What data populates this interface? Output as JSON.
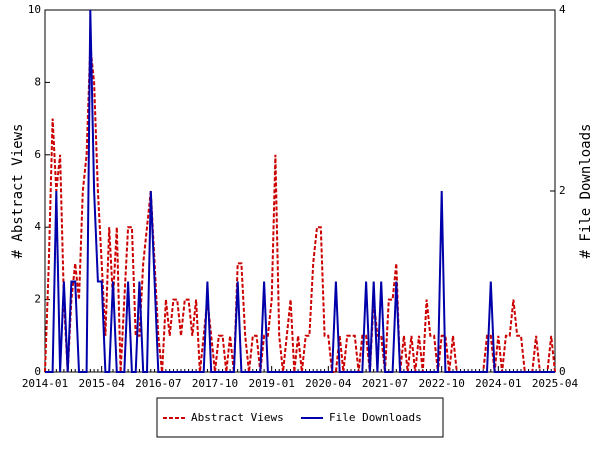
{
  "chart_data": {
    "type": "line",
    "ylabel": "# Abstract Views",
    "y2label": "# File Downloads",
    "x": [
      "2014-01",
      null,
      null,
      null,
      null,
      null,
      null,
      null,
      null,
      null,
      null,
      null,
      null,
      null,
      null,
      "2015-04",
      null,
      null,
      null,
      null,
      null,
      null,
      null,
      null,
      null,
      null,
      null,
      null,
      null,
      null,
      "2016-07",
      null,
      null,
      null,
      null,
      null,
      null,
      null,
      null,
      null,
      null,
      null,
      null,
      null,
      null,
      "2017-10",
      null,
      null,
      null,
      null,
      null,
      null,
      null,
      null,
      null,
      null,
      null,
      null,
      null,
      null,
      "2019-01",
      null,
      null,
      null,
      null,
      null,
      null,
      null,
      null,
      null,
      null,
      null,
      null,
      null,
      null,
      "2020-04",
      null,
      null,
      null,
      null,
      null,
      null,
      null,
      null,
      null,
      null,
      null,
      null,
      null,
      null,
      "2021-07",
      null,
      null,
      null,
      null,
      null,
      null,
      null,
      null,
      null,
      null,
      null,
      null,
      null,
      null,
      "2022-10",
      null,
      null,
      null,
      null,
      null,
      null,
      null,
      null,
      null,
      null,
      null,
      null,
      null,
      null,
      "2024-01",
      null,
      null,
      null,
      null,
      null,
      null,
      null,
      null,
      null,
      null,
      null,
      null,
      null,
      null,
      "2025-04"
    ],
    "series": [
      {
        "name": "Abstract Views",
        "color": "#cc0000",
        "dash": true,
        "values": [
          0,
          3,
          7,
          5,
          6,
          2,
          0,
          2,
          3,
          2,
          5,
          6,
          9,
          8,
          5,
          3,
          1,
          4,
          2,
          4,
          0,
          2,
          4,
          4,
          1,
          1,
          3,
          4,
          5,
          3,
          1,
          0,
          2,
          1,
          2,
          2,
          1,
          2,
          2,
          1,
          2,
          0,
          1,
          2,
          1,
          0,
          1,
          1,
          0,
          1,
          0,
          3,
          3,
          1,
          0,
          1,
          1,
          0,
          1,
          1,
          2,
          6,
          1,
          0,
          1,
          2,
          0,
          1,
          0,
          1,
          1,
          3,
          4,
          4,
          1,
          1,
          0,
          0,
          1,
          0,
          1,
          1,
          1,
          0,
          1,
          1,
          0,
          2,
          1,
          1,
          0,
          2,
          2,
          3,
          0,
          1,
          0,
          1,
          0,
          1,
          0,
          2,
          1,
          1,
          0,
          1,
          1,
          0,
          1,
          0,
          0,
          0,
          0,
          0,
          0,
          0,
          0,
          1,
          1,
          0,
          1,
          0,
          1,
          1,
          2,
          1,
          1,
          0,
          0,
          0,
          1,
          0,
          0,
          0,
          1,
          0
        ]
      },
      {
        "name": "File Downloads",
        "color": "#0000aa",
        "dash": false,
        "axis": "y2",
        "values": [
          0,
          0,
          0,
          2,
          0,
          1,
          0,
          1,
          1,
          0,
          0,
          0,
          4,
          2,
          1,
          1,
          0,
          0,
          1,
          0,
          0,
          0,
          1,
          0,
          0,
          1,
          0,
          0,
          2,
          1,
          0,
          0,
          0,
          0,
          0,
          0,
          0,
          0,
          0,
          0,
          0,
          0,
          0,
          1,
          0,
          0,
          0,
          0,
          0,
          0,
          0,
          1,
          0,
          0,
          0,
          0,
          0,
          0,
          1,
          0,
          0,
          0,
          0,
          0,
          0,
          0,
          0,
          0,
          0,
          0,
          0,
          0,
          0,
          0,
          0,
          0,
          0,
          1,
          0,
          0,
          0,
          0,
          0,
          0,
          0,
          1,
          0,
          1,
          0,
          1,
          0,
          0,
          0,
          1,
          0,
          0,
          0,
          0,
          0,
          0,
          0,
          0,
          0,
          0,
          0,
          2,
          0,
          0,
          0,
          0,
          0,
          0,
          0,
          0,
          0,
          0,
          0,
          0,
          1,
          0,
          0,
          0,
          0,
          0,
          0,
          0,
          0,
          0,
          0,
          0,
          0,
          0,
          0,
          0,
          0,
          0
        ]
      }
    ],
    "ylim": [
      0,
      10
    ],
    "yticks": [
      0,
      2,
      4,
      6,
      8,
      10
    ],
    "y2lim": [
      0,
      4
    ],
    "y2ticks": [
      0,
      2,
      4
    ]
  }
}
